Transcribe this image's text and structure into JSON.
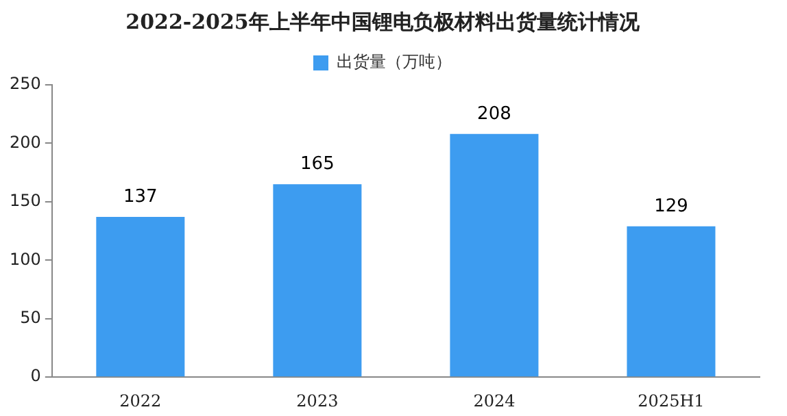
{
  "chart_data": {
    "type": "bar",
    "title": "2022-2025年上半年中国锂电负极材料出货量统计情况",
    "categories": [
      "2022",
      "2023",
      "2024",
      "2025H1"
    ],
    "series": [
      {
        "name": "出货量（万吨）",
        "color": "#3d9cf0",
        "values": [
          137,
          165,
          208,
          129
        ]
      }
    ],
    "ylim": [
      0,
      250
    ],
    "yticks": [
      0,
      50,
      100,
      150,
      200,
      250
    ],
    "grid": false,
    "legend": "top",
    "data_labels": true
  }
}
